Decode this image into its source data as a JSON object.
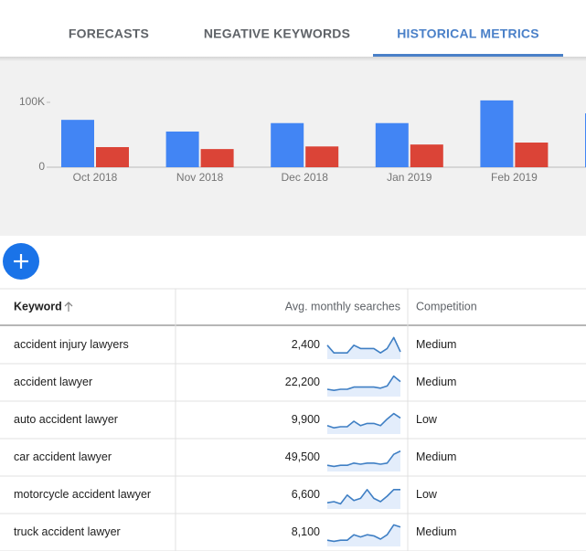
{
  "tabs": {
    "items": [
      "FORECASTS",
      "NEGATIVE KEYWORDS",
      "HISTORICAL METRICS"
    ],
    "active": 2
  },
  "chart_data": {
    "type": "bar",
    "categories": [
      "Oct 2018",
      "Nov 2018",
      "Dec 2018",
      "Jan 2019",
      "Feb 2019",
      null
    ],
    "series": [
      {
        "color": "#4285f4",
        "values": [
          73000,
          55000,
          68000,
          68000,
          103000,
          83000
        ]
      },
      {
        "color": "#db4437",
        "values": [
          31000,
          28000,
          32000,
          35000,
          38000,
          null
        ]
      }
    ],
    "ylim": [
      0,
      100000
    ],
    "yticks": [
      0,
      {
        "value": 100000,
        "label": "100K"
      }
    ],
    "grid": false
  },
  "table": {
    "columns": [
      "Keyword",
      "Avg. monthly searches",
      "Competition"
    ],
    "rows": [
      {
        "keyword": "accident injury lawyers",
        "searches": "2,400",
        "trend": [
          55,
          20,
          20,
          20,
          55,
          40,
          40,
          40,
          20,
          40,
          90,
          25
        ],
        "competition": "Medium"
      },
      {
        "keyword": "accident lawyer",
        "searches": "22,200",
        "trend": [
          25,
          20,
          25,
          25,
          35,
          35,
          35,
          35,
          30,
          40,
          85,
          60
        ],
        "competition": "Medium"
      },
      {
        "keyword": "auto accident lawyer",
        "searches": "9,900",
        "trend": [
          30,
          20,
          25,
          25,
          50,
          30,
          40,
          40,
          30,
          60,
          85,
          65
        ],
        "competition": "Low"
      },
      {
        "keyword": "car accident lawyer",
        "searches": "49,500",
        "trend": [
          20,
          15,
          20,
          20,
          30,
          25,
          30,
          30,
          25,
          30,
          70,
          85
        ],
        "competition": "Medium"
      },
      {
        "keyword": "motorcycle accident lawyer",
        "searches": "6,600",
        "trend": [
          20,
          25,
          15,
          55,
          30,
          40,
          80,
          40,
          25,
          50,
          80,
          80
        ],
        "competition": "Low"
      },
      {
        "keyword": "truck accident lawyer",
        "searches": "8,100",
        "trend": [
          20,
          15,
          20,
          20,
          45,
          35,
          45,
          40,
          25,
          45,
          90,
          80
        ],
        "competition": "Medium"
      }
    ]
  }
}
